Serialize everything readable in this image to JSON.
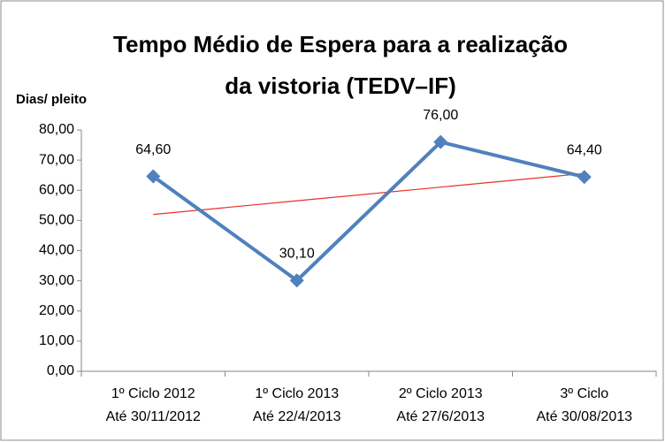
{
  "chart_data": {
    "type": "line",
    "title": [
      "Tempo Médio de Espera para a realização",
      "da vistoria (TEDV–IF)"
    ],
    "y_label": "Dias/ pleito",
    "categories": [
      [
        "1º Ciclo 2012",
        "Até 30/11/2012"
      ],
      [
        "1º  Ciclo 2013",
        "Até 22/4/2013"
      ],
      [
        "2º Ciclo 2013",
        "Até 27/6/2013"
      ],
      [
        "3º Ciclo",
        "Até 30/08/2013"
      ]
    ],
    "series": [
      {
        "color": "#4f81bd",
        "values": [
          64.6,
          30.1,
          76,
          64.4
        ],
        "value_labels": [
          "64,60",
          "30,10",
          "76,00",
          "64,40"
        ]
      }
    ],
    "trendline": {
      "color": "#e8302a",
      "values": [
        51.98,
        56.51,
        61.04,
        65.57
      ]
    },
    "ylim": [
      0,
      80
    ],
    "yticks": [
      {
        "value": 0,
        "label": "0,00"
      },
      {
        "value": 10,
        "label": "10,00"
      },
      {
        "value": 20,
        "label": "20,00"
      },
      {
        "value": 30,
        "label": "30,00"
      },
      {
        "value": 40,
        "label": "40,00"
      },
      {
        "value": 50,
        "label": "50,00"
      },
      {
        "value": 60,
        "label": "60,00"
      },
      {
        "value": 70,
        "label": "70,00"
      },
      {
        "value": 80,
        "label": "80,00"
      }
    ],
    "grid": false
  }
}
